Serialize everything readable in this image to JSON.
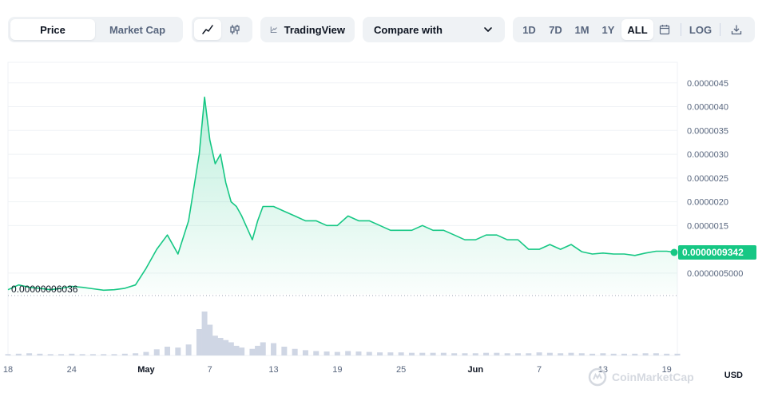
{
  "toolbar": {
    "type_tabs": [
      "Price",
      "Market Cap"
    ],
    "tradingview_label": "TradingView",
    "compare_label": "Compare with",
    "ranges": [
      "1D",
      "7D",
      "1M",
      "1Y",
      "ALL"
    ],
    "active_range": "ALL",
    "log_label": "LOG"
  },
  "watermark": "CoinMarketCap",
  "currency": "USD",
  "colors": {
    "line": "#16c784",
    "area_top": "#16c784",
    "volume": "#cfd6e4",
    "accent": "#16c784"
  },
  "chart_data": {
    "type": "area",
    "x_tick_labels": [
      "18",
      "24",
      "May",
      "7",
      "13",
      "19",
      "25",
      "Jun",
      "7",
      "13",
      "19"
    ],
    "y_tick_labels": [
      "0.0000005000",
      "0.0000015",
      "0.0000020",
      "0.0000025",
      "0.0000030",
      "0.0000035",
      "0.0000040",
      "0.0000045"
    ],
    "y_ticks": [
      5e-07,
      1.5e-06,
      2e-06,
      2.5e-06,
      3e-06,
      3.5e-06,
      4e-06,
      4.5e-06
    ],
    "ylim": [
      6.036e-08,
      4.9e-06
    ],
    "min_label": "0.00000006036",
    "current_price": 9.342e-07,
    "current_label": "0.0000009342",
    "x_range": [
      "2023-04-18",
      "2023-06-20"
    ],
    "series": [
      {
        "x": [
          "2023-04-18",
          "2023-04-19",
          "2023-04-20",
          "2023-04-21",
          "2023-04-22",
          "2023-04-23",
          "2023-04-24",
          "2023-04-25",
          "2023-04-26",
          "2023-04-27",
          "2023-04-28",
          "2023-04-29",
          "2023-04-30",
          "2023-05-01",
          "2023-05-02",
          "2023-05-03",
          "2023-05-04",
          "2023-05-05",
          "2023-05-06",
          "2023-05-06T12",
          "2023-05-07",
          "2023-05-07T12",
          "2023-05-08",
          "2023-05-08T12",
          "2023-05-09",
          "2023-05-09T12",
          "2023-05-10",
          "2023-05-11",
          "2023-05-11T12",
          "2023-05-12",
          "2023-05-13",
          "2023-05-14",
          "2023-05-15",
          "2023-05-16",
          "2023-05-17",
          "2023-05-18",
          "2023-05-19",
          "2023-05-20",
          "2023-05-21",
          "2023-05-22",
          "2023-05-23",
          "2023-05-24",
          "2023-05-25",
          "2023-05-26",
          "2023-05-27",
          "2023-05-28",
          "2023-05-29",
          "2023-05-30",
          "2023-05-31",
          "2023-06-01",
          "2023-06-02",
          "2023-06-03",
          "2023-06-04",
          "2023-06-05",
          "2023-06-06",
          "2023-06-07",
          "2023-06-08",
          "2023-06-09",
          "2023-06-10",
          "2023-06-11",
          "2023-06-12",
          "2023-06-13",
          "2023-06-14",
          "2023-06-15",
          "2023-06-16",
          "2023-06-17",
          "2023-06-18",
          "2023-06-19",
          "2023-06-20"
        ],
        "y": [
          1.5e-07,
          2.5e-07,
          2e-07,
          1.8e-07,
          1.5e-07,
          1.8e-07,
          2.2e-07,
          2e-07,
          1.7e-07,
          1.4e-07,
          1.5e-07,
          1.8e-07,
          2.5e-07,
          6e-07,
          1e-06,
          1.3e-06,
          9e-07,
          1.6e-06,
          3e-06,
          4.2e-06,
          3.3e-06,
          2.8e-06,
          3e-06,
          2.4e-06,
          2e-06,
          1.9e-06,
          1.7e-06,
          1.2e-06,
          1.6e-06,
          1.9e-06,
          1.9e-06,
          1.8e-06,
          1.7e-06,
          1.6e-06,
          1.6e-06,
          1.5e-06,
          1.5e-06,
          1.7e-06,
          1.6e-06,
          1.6e-06,
          1.5e-06,
          1.4e-06,
          1.4e-06,
          1.4e-06,
          1.5e-06,
          1.4e-06,
          1.4e-06,
          1.3e-06,
          1.2e-06,
          1.2e-06,
          1.3e-06,
          1.3e-06,
          1.2e-06,
          1.2e-06,
          1e-06,
          1e-06,
          1.1e-06,
          1e-06,
          1.1e-06,
          9.5e-07,
          9e-07,
          9.2e-07,
          9e-07,
          9e-07,
          8.7e-07,
          9.2e-07,
          9.6e-07,
          9.6e-07,
          9.3e-07
        ]
      }
    ],
    "volume_relative": [
      3,
      4,
      5,
      4,
      3,
      3,
      4,
      3,
      3,
      3,
      3,
      4,
      5,
      8,
      14,
      20,
      18,
      25,
      60,
      100,
      70,
      45,
      40,
      35,
      30,
      22,
      18,
      15,
      22,
      30,
      28,
      20,
      15,
      12,
      10,
      9,
      8,
      10,
      9,
      8,
      7,
      7,
      7,
      6,
      6,
      6,
      6,
      5,
      5,
      5,
      6,
      6,
      5,
      5,
      5,
      7,
      6,
      5,
      6,
      5,
      4,
      5,
      4,
      4,
      4,
      5,
      5,
      4,
      4
    ]
  }
}
